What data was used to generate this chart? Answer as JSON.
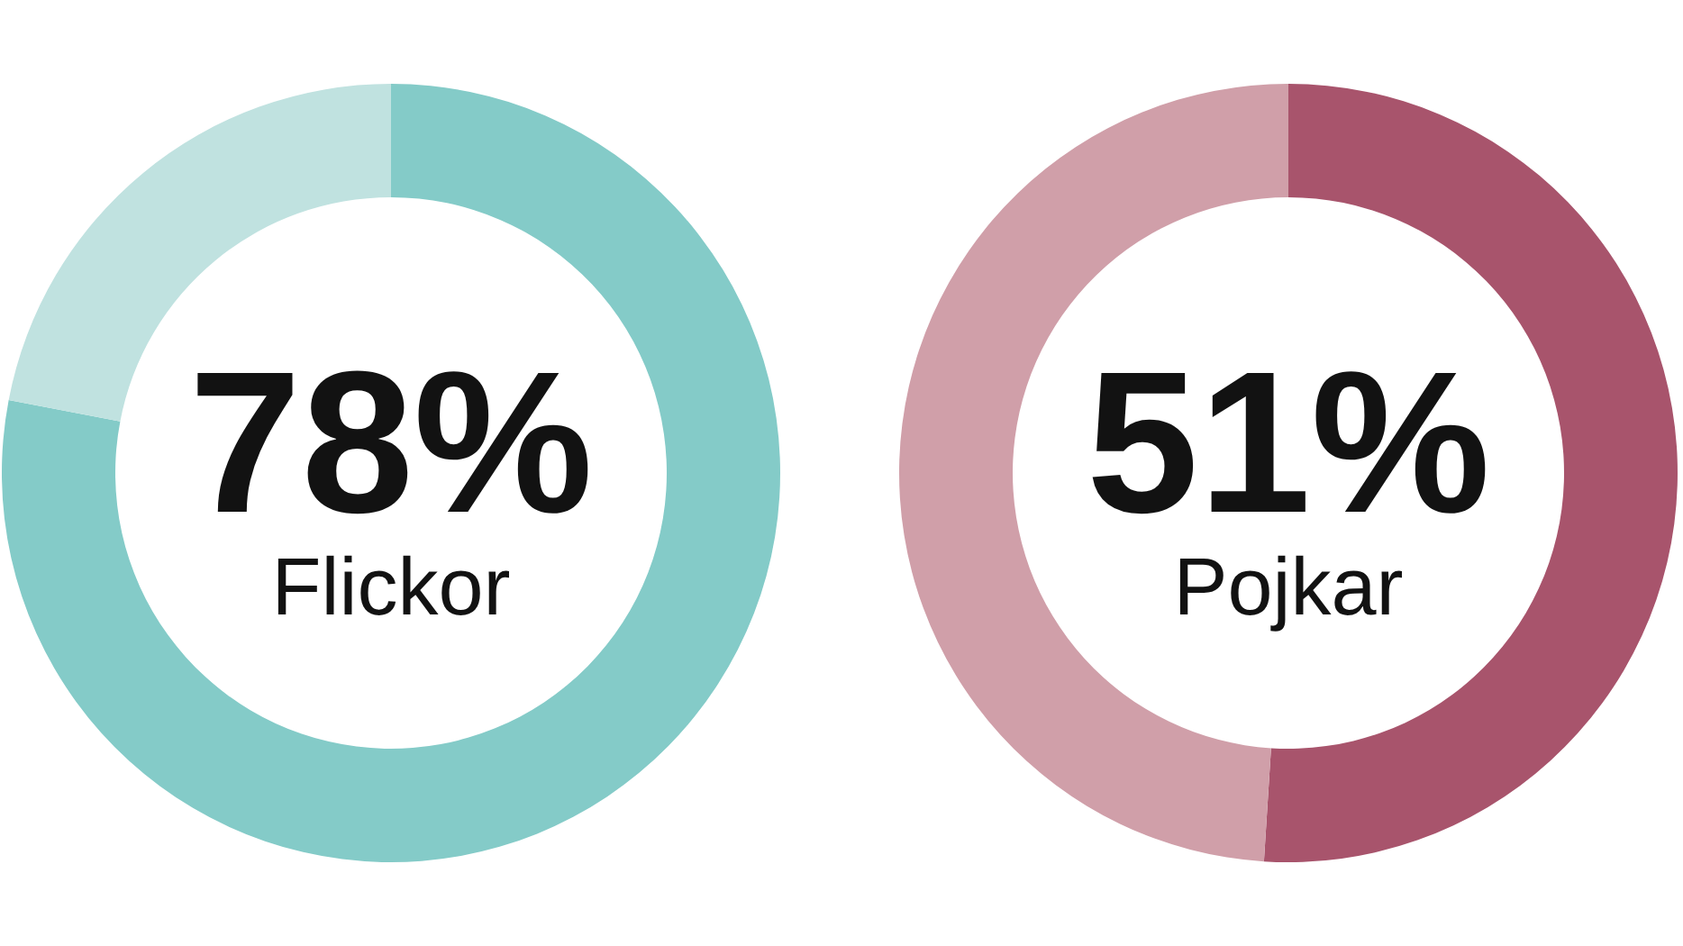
{
  "chart_data": [
    {
      "type": "donut",
      "categories": [
        "Flickor",
        null
      ],
      "values": [
        78,
        22
      ],
      "colors": [
        "#84cbc8",
        "#c0e2e0"
      ],
      "value_labels": [
        "78%",
        null
      ]
    },
    {
      "type": "donut",
      "categories": [
        "Pojkar",
        null
      ],
      "values": [
        51,
        49
      ],
      "colors": [
        "#a8546c",
        "#d09fa9"
      ],
      "value_labels": [
        "51%",
        null
      ]
    }
  ]
}
